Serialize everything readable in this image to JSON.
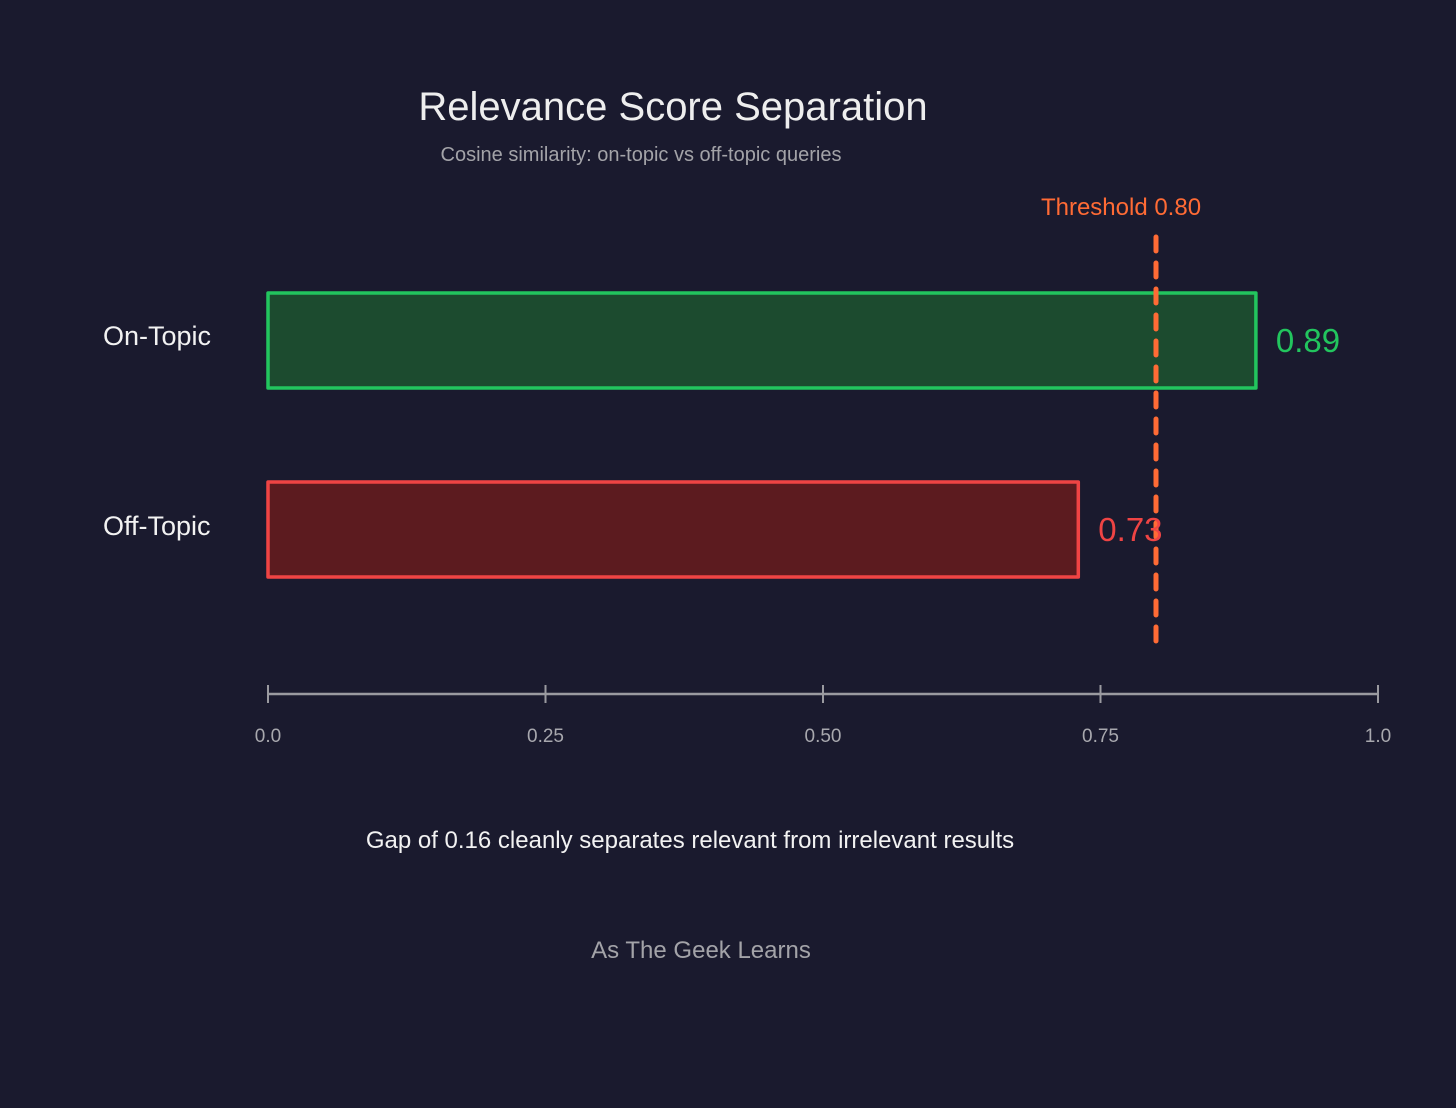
{
  "chart_data": {
    "type": "bar",
    "orientation": "horizontal",
    "title": "Relevance Score Separation",
    "subtitle": "Cosine similarity: on-topic vs off-topic queries",
    "categories": [
      "On-Topic",
      "Off-Topic"
    ],
    "values": [
      0.89,
      0.73
    ],
    "value_labels": [
      "0.89",
      "0.73"
    ],
    "colors": {
      "on_topic_stroke": "#22c55e",
      "on_topic_fill": "#1c4b2f",
      "off_topic_stroke": "#ef4444",
      "off_topic_fill": "#5c1b1f",
      "threshold": "#ff6b35",
      "axis": "#9a9aa0",
      "background": "#1a1a2e"
    },
    "xlim": [
      0,
      1.0
    ],
    "ticks": [
      0,
      0.25,
      0.5,
      0.75,
      1.0
    ],
    "tick_labels": [
      "0.0",
      "0.25",
      "0.50",
      "0.75",
      "1.0"
    ],
    "grid": false,
    "threshold": {
      "value": 0.8,
      "label": "Threshold 0.80"
    },
    "annotation": "Gap of 0.16 cleanly separates relevant from irrelevant results",
    "footer": "As The Geek Learns"
  }
}
